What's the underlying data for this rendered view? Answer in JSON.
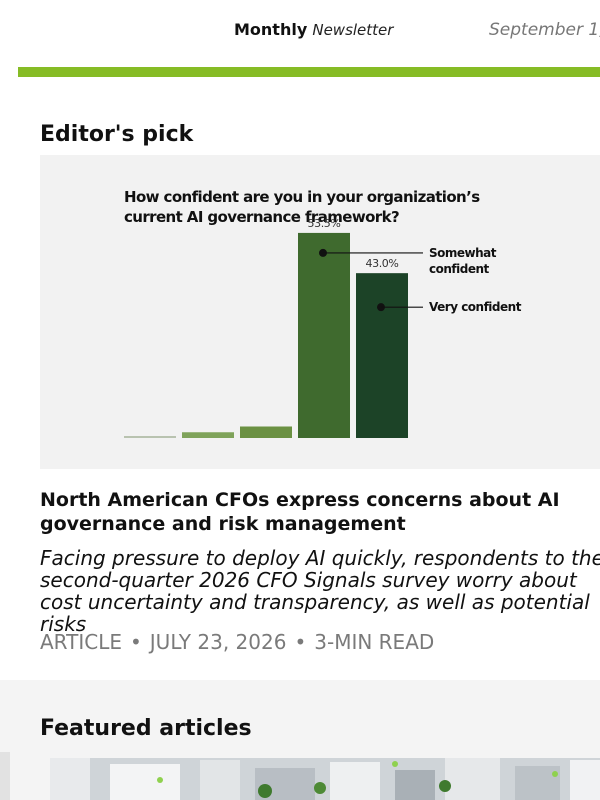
{
  "header": {
    "brand_bold": "Monthly",
    "brand_italic": "Newsletter",
    "date": "September 1, ."
  },
  "editors_pick": {
    "section_title": "Editor's pick",
    "article": {
      "title": "North American CFOs express concerns about AI governance and risk management",
      "description": "Facing pressure to deploy AI quickly, respondents to the second-quarter 2026 CFO Signals survey worry about cost uncertainty and transparency, as well as potential risks",
      "type": "ARTICLE",
      "date": "JULY 23, 2026",
      "read_time": "3-MIN READ",
      "separator": "•"
    }
  },
  "chart_data": {
    "type": "bar",
    "title_lines": [
      "How confident are you in your organization’s",
      "current AI governance framework?"
    ],
    "values": [
      0.5,
      1.5,
      3.0,
      53.5,
      43.0
    ],
    "value_labels": [
      "",
      "",
      "",
      "53.5%",
      "43.0%"
    ],
    "colors": [
      "#b9c3b0",
      "#7fa35a",
      "#6b9143",
      "#3f6a2e",
      "#1c4327"
    ],
    "callouts": [
      {
        "bar_index": 3,
        "lines": [
          "Somewhat",
          "confident"
        ]
      },
      {
        "bar_index": 4,
        "lines": [
          "Very confident"
        ]
      }
    ],
    "ylim": [
      0,
      60
    ],
    "grid": false
  },
  "featured": {
    "section_title": "Featured articles"
  },
  "colors": {
    "accent_green": "#86bc25",
    "meta_gray": "#7a7a7a"
  }
}
